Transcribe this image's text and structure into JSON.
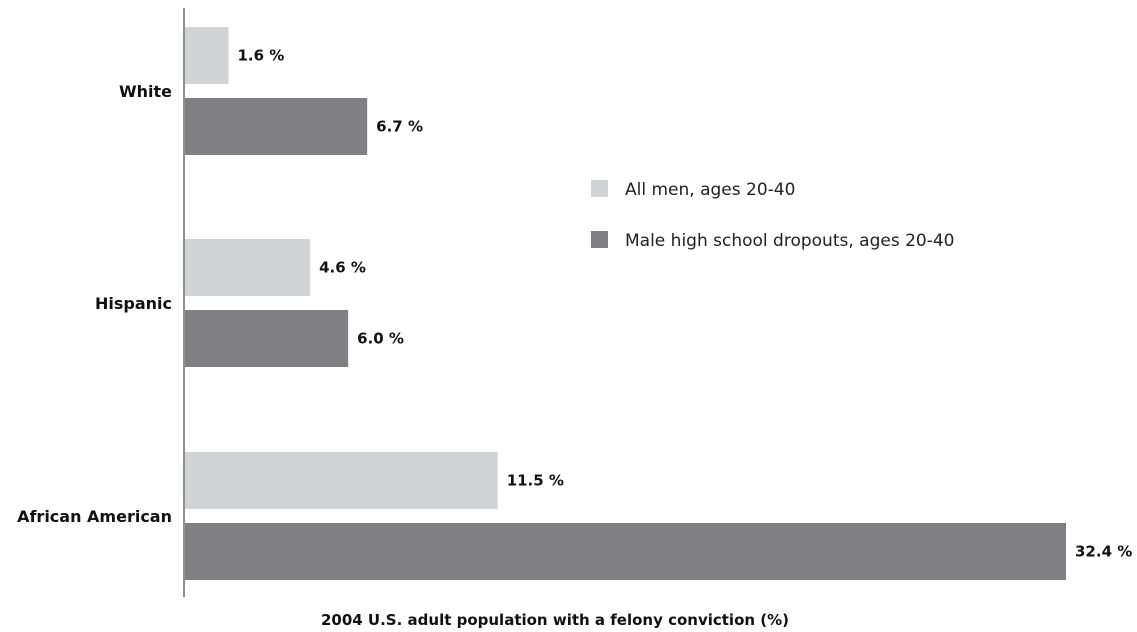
{
  "chart_data": {
    "type": "bar",
    "orientation": "horizontal",
    "categories": [
      "White",
      "Hispanic",
      "African American"
    ],
    "series": [
      {
        "name": "All men, ages 20-40",
        "values": [
          1.6,
          4.6,
          11.5
        ],
        "color": "#d2d3d5"
      },
      {
        "name": "Male high school dropouts, ages 20-40",
        "values": [
          6.7,
          6.0,
          32.4
        ],
        "color": "#808083"
      }
    ],
    "value_labels": [
      [
        "1.6 %",
        "4.6 %",
        "11.5 %"
      ],
      [
        "6.7 %",
        "6.0 %",
        "32.4 %"
      ]
    ],
    "xlabel": "2004 U.S. adult population with a felony conviction (%)",
    "xlim": [
      0,
      32.4
    ],
    "grid": false,
    "legend_position": "right"
  }
}
